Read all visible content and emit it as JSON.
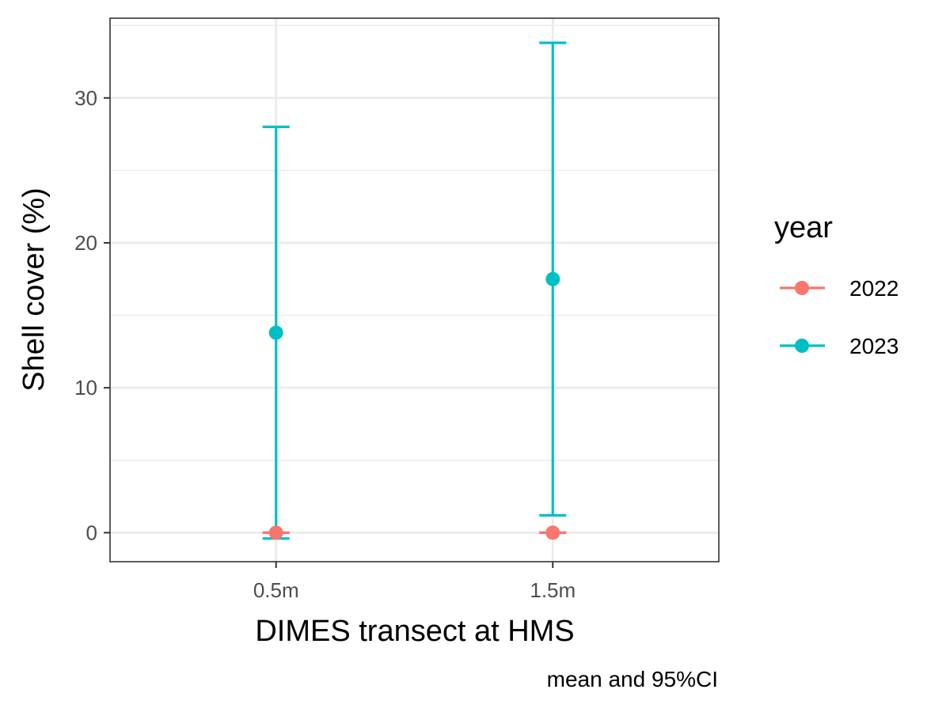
{
  "chart_data": {
    "type": "errorbar",
    "xlabel": "DIMES transect at HMS",
    "ylabel": "Shell cover (%)",
    "caption": "mean and 95%CI",
    "categories": [
      "0.5m",
      "1.5m"
    ],
    "ylim": [
      -2,
      35.5
    ],
    "yticks": [
      0,
      10,
      20,
      30
    ],
    "grid": true,
    "legend": {
      "title": "year",
      "placement": "right"
    },
    "series": [
      {
        "name": "2022",
        "color": "#F8766D",
        "points": [
          {
            "category": "0.5m",
            "mean": 0,
            "lower": 0,
            "upper": 0
          },
          {
            "category": "1.5m",
            "mean": 0,
            "lower": 0,
            "upper": 0
          }
        ]
      },
      {
        "name": "2023",
        "color": "#00BFC4",
        "points": [
          {
            "category": "0.5m",
            "mean": 13.8,
            "lower": -0.4,
            "upper": 28.0
          },
          {
            "category": "1.5m",
            "mean": 17.5,
            "lower": 1.2,
            "upper": 33.8
          }
        ]
      }
    ]
  }
}
